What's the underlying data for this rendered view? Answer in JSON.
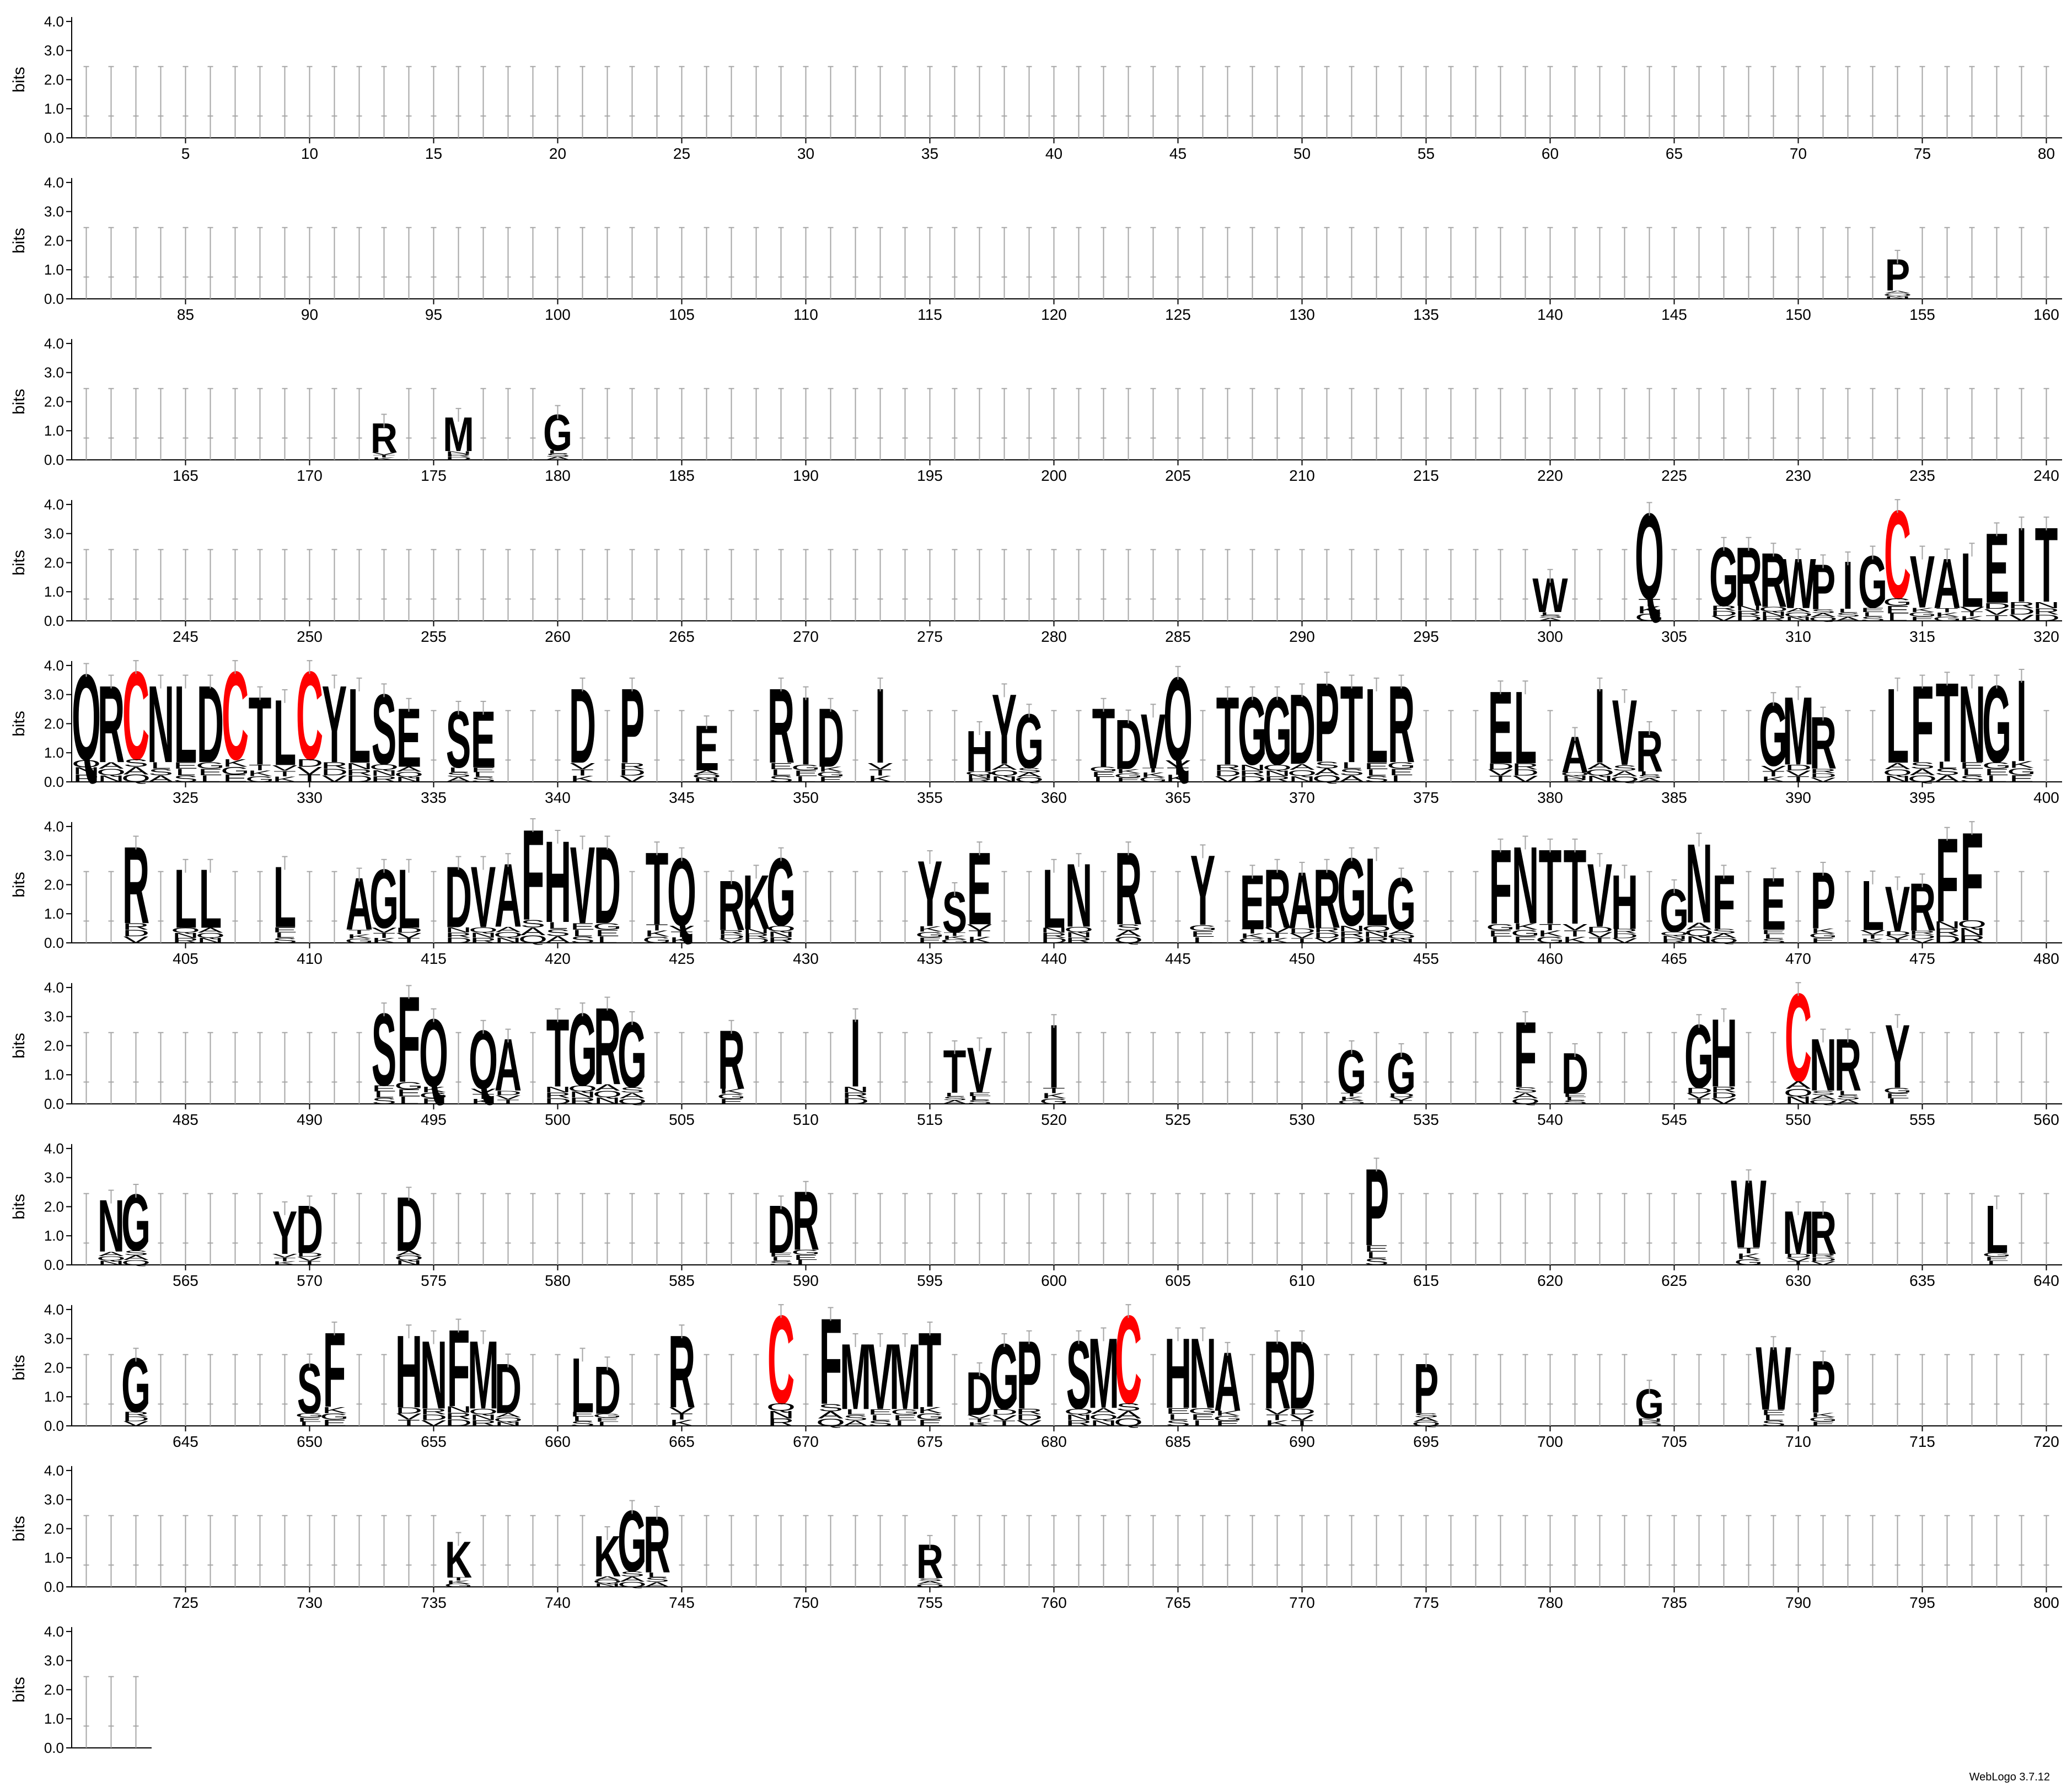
{
  "chart_data": {
    "type": "sequence-logo",
    "ylabel": "bits",
    "ylim": [
      0,
      4.32
    ],
    "yticks": [
      "0.0",
      "1.0",
      "2.0",
      "3.0",
      "4.0"
    ],
    "positions_per_row": 80,
    "total_positions": 803,
    "x_tick_every": 5,
    "error_bars": true,
    "colors": {
      "default": "#000000",
      "cysteine": "#ff0000",
      "axis": "#000000",
      "errorbar": "#a6a6a6"
    },
    "dominant_residues": [
      {
        "pos": 154,
        "residue": "P",
        "bits": 1.4
      },
      {
        "pos": 173,
        "residue": "R",
        "bits": 1.3
      },
      {
        "pos": 176,
        "residue": "M",
        "bits": 1.5
      },
      {
        "pos": 180,
        "residue": "G",
        "bits": 1.6
      },
      {
        "pos": 300,
        "residue": "W",
        "bits": 1.5
      },
      {
        "pos": 304,
        "residue": "Q",
        "bits": 3.8
      },
      {
        "pos": 307,
        "residue": "G",
        "bits": 2.6
      },
      {
        "pos": 308,
        "residue": "R",
        "bits": 2.6
      },
      {
        "pos": 309,
        "residue": "R",
        "bits": 2.4
      },
      {
        "pos": 310,
        "residue": "W",
        "bits": 2.2
      },
      {
        "pos": 311,
        "residue": "P",
        "bits": 2.0
      },
      {
        "pos": 312,
        "residue": "I",
        "bits": 2.1
      },
      {
        "pos": 313,
        "residue": "G",
        "bits": 2.3
      },
      {
        "pos": 314,
        "residue": "C",
        "bits": 3.9
      },
      {
        "pos": 315,
        "residue": "V",
        "bits": 2.3
      },
      {
        "pos": 316,
        "residue": "A",
        "bits": 2.2
      },
      {
        "pos": 317,
        "residue": "L",
        "bits": 2.4
      },
      {
        "pos": 318,
        "residue": "E",
        "bits": 3.1
      },
      {
        "pos": 319,
        "residue": "I",
        "bits": 3.3
      },
      {
        "pos": 320,
        "residue": "T",
        "bits": 3.3
      },
      {
        "pos": 321,
        "residue": "Q",
        "bits": 3.8
      },
      {
        "pos": 322,
        "residue": "R",
        "bits": 3.4
      },
      {
        "pos": 323,
        "residue": "C",
        "bits": 3.9
      },
      {
        "pos": 324,
        "residue": "N",
        "bits": 3.4
      },
      {
        "pos": 325,
        "residue": "L",
        "bits": 3.4
      },
      {
        "pos": 326,
        "residue": "D",
        "bits": 3.4
      },
      {
        "pos": 327,
        "residue": "C",
        "bits": 3.9
      },
      {
        "pos": 328,
        "residue": "T",
        "bits": 3.0
      },
      {
        "pos": 329,
        "residue": "L",
        "bits": 2.9
      },
      {
        "pos": 330,
        "residue": "C",
        "bits": 3.9
      },
      {
        "pos": 331,
        "residue": "Y",
        "bits": 3.4
      },
      {
        "pos": 332,
        "residue": "L",
        "bits": 3.3
      },
      {
        "pos": 333,
        "residue": "S",
        "bits": 3.1
      },
      {
        "pos": 334,
        "residue": "E",
        "bits": 2.6
      },
      {
        "pos": 336,
        "residue": "S",
        "bits": 2.5
      },
      {
        "pos": 337,
        "residue": "E",
        "bits": 2.5
      },
      {
        "pos": 341,
        "residue": "D",
        "bits": 3.3
      },
      {
        "pos": 343,
        "residue": "P",
        "bits": 3.3
      },
      {
        "pos": 346,
        "residue": "E",
        "bits": 2.0
      },
      {
        "pos": 349,
        "residue": "R",
        "bits": 3.3
      },
      {
        "pos": 350,
        "residue": "I",
        "bits": 3.0
      },
      {
        "pos": 351,
        "residue": "D",
        "bits": 2.6
      },
      {
        "pos": 353,
        "residue": "I",
        "bits": 3.3
      },
      {
        "pos": 357,
        "residue": "H",
        "bits": 1.8
      },
      {
        "pos": 358,
        "residue": "Y",
        "bits": 3.1
      },
      {
        "pos": 359,
        "residue": "G",
        "bits": 2.4
      },
      {
        "pos": 362,
        "residue": "T",
        "bits": 2.6
      },
      {
        "pos": 363,
        "residue": "D",
        "bits": 2.2
      },
      {
        "pos": 364,
        "residue": "V",
        "bits": 2.4
      },
      {
        "pos": 365,
        "residue": "Q",
        "bits": 3.7
      },
      {
        "pos": 367,
        "residue": "T",
        "bits": 3.0
      },
      {
        "pos": 368,
        "residue": "G",
        "bits": 3.0
      },
      {
        "pos": 369,
        "residue": "G",
        "bits": 3.0
      },
      {
        "pos": 370,
        "residue": "D",
        "bits": 3.1
      },
      {
        "pos": 371,
        "residue": "P",
        "bits": 3.5
      },
      {
        "pos": 372,
        "residue": "T",
        "bits": 3.4
      },
      {
        "pos": 373,
        "residue": "L",
        "bits": 3.3
      },
      {
        "pos": 374,
        "residue": "R",
        "bits": 3.4
      },
      {
        "pos": 378,
        "residue": "E",
        "bits": 3.2
      },
      {
        "pos": 379,
        "residue": "L",
        "bits": 3.2
      },
      {
        "pos": 381,
        "residue": "A",
        "bits": 1.6
      },
      {
        "pos": 382,
        "residue": "I",
        "bits": 3.3
      },
      {
        "pos": 383,
        "residue": "V",
        "bits": 2.9
      },
      {
        "pos": 384,
        "residue": "R",
        "bits": 1.8
      },
      {
        "pos": 389,
        "residue": "G",
        "bits": 2.8
      },
      {
        "pos": 390,
        "residue": "M",
        "bits": 3.0
      },
      {
        "pos": 391,
        "residue": "R",
        "bits": 2.3
      },
      {
        "pos": 394,
        "residue": "L",
        "bits": 3.3
      },
      {
        "pos": 395,
        "residue": "F",
        "bits": 3.4
      },
      {
        "pos": 396,
        "residue": "T",
        "bits": 3.5
      },
      {
        "pos": 397,
        "residue": "N",
        "bits": 3.4
      },
      {
        "pos": 398,
        "residue": "G",
        "bits": 3.4
      },
      {
        "pos": 399,
        "residue": "I",
        "bits": 3.6
      },
      {
        "pos": 403,
        "residue": "R",
        "bits": 3.4
      },
      {
        "pos": 405,
        "residue": "L",
        "bits": 2.6
      },
      {
        "pos": 406,
        "residue": "L",
        "bits": 2.6
      },
      {
        "pos": 409,
        "residue": "L",
        "bits": 2.7
      },
      {
        "pos": 412,
        "residue": "A",
        "bits": 2.3
      },
      {
        "pos": 413,
        "residue": "G",
        "bits": 2.6
      },
      {
        "pos": 414,
        "residue": "L",
        "bits": 2.6
      },
      {
        "pos": 416,
        "residue": "D",
        "bits": 2.7
      },
      {
        "pos": 417,
        "residue": "V",
        "bits": 2.7
      },
      {
        "pos": 418,
        "residue": "A",
        "bits": 2.8
      },
      {
        "pos": 419,
        "residue": "F",
        "bits": 4.0
      },
      {
        "pos": 420,
        "residue": "H",
        "bits": 3.6
      },
      {
        "pos": 421,
        "residue": "V",
        "bits": 3.4
      },
      {
        "pos": 422,
        "residue": "D",
        "bits": 3.4
      },
      {
        "pos": 424,
        "residue": "T",
        "bits": 3.2
      },
      {
        "pos": 425,
        "residue": "Q",
        "bits": 3.0
      },
      {
        "pos": 427,
        "residue": "R",
        "bits": 2.2
      },
      {
        "pos": 428,
        "residue": "K",
        "bits": 2.4
      },
      {
        "pos": 429,
        "residue": "G",
        "bits": 3.0
      },
      {
        "pos": 435,
        "residue": "Y",
        "bits": 2.9
      },
      {
        "pos": 436,
        "residue": "S",
        "bits": 1.8
      },
      {
        "pos": 437,
        "residue": "E",
        "bits": 3.2
      },
      {
        "pos": 440,
        "residue": "L",
        "bits": 2.6
      },
      {
        "pos": 441,
        "residue": "N",
        "bits": 2.8
      },
      {
        "pos": 443,
        "residue": "R",
        "bits": 3.2
      },
      {
        "pos": 446,
        "residue": "Y",
        "bits": 3.1
      },
      {
        "pos": 448,
        "residue": "E",
        "bits": 2.4
      },
      {
        "pos": 449,
        "residue": "R",
        "bits": 2.6
      },
      {
        "pos": 450,
        "residue": "A",
        "bits": 2.5
      },
      {
        "pos": 451,
        "residue": "R",
        "bits": 2.6
      },
      {
        "pos": 452,
        "residue": "G",
        "bits": 3.0
      },
      {
        "pos": 453,
        "residue": "L",
        "bits": 3.0
      },
      {
        "pos": 454,
        "residue": "G",
        "bits": 2.3
      },
      {
        "pos": 458,
        "residue": "F",
        "bits": 3.3
      },
      {
        "pos": 459,
        "residue": "N",
        "bits": 3.4
      },
      {
        "pos": 460,
        "residue": "T",
        "bits": 3.3
      },
      {
        "pos": 461,
        "residue": "T",
        "bits": 3.3
      },
      {
        "pos": 462,
        "residue": "V",
        "bits": 2.8
      },
      {
        "pos": 463,
        "residue": "H",
        "bits": 2.4
      },
      {
        "pos": 465,
        "residue": "G",
        "bits": 1.9
      },
      {
        "pos": 466,
        "residue": "N",
        "bits": 3.5
      },
      {
        "pos": 467,
        "residue": "F",
        "bits": 2.4
      },
      {
        "pos": 469,
        "residue": "E",
        "bits": 2.3
      },
      {
        "pos": 471,
        "residue": "P",
        "bits": 2.5
      },
      {
        "pos": 473,
        "residue": "L",
        "bits": 2.2
      },
      {
        "pos": 474,
        "residue": "V",
        "bits": 2.0
      },
      {
        "pos": 475,
        "residue": "R",
        "bits": 2.1
      },
      {
        "pos": 476,
        "residue": "F",
        "bits": 3.7
      },
      {
        "pos": 477,
        "residue": "F",
        "bits": 3.9
      },
      {
        "pos": 493,
        "residue": "S",
        "bits": 3.2
      },
      {
        "pos": 494,
        "residue": "F",
        "bits": 3.8
      },
      {
        "pos": 495,
        "residue": "Q",
        "bits": 3.0
      },
      {
        "pos": 497,
        "residue": "Q",
        "bits": 2.6
      },
      {
        "pos": 498,
        "residue": "A",
        "bits": 2.3
      },
      {
        "pos": 500,
        "residue": "T",
        "bits": 3.0
      },
      {
        "pos": 501,
        "residue": "G",
        "bits": 3.2
      },
      {
        "pos": 502,
        "residue": "R",
        "bits": 3.4
      },
      {
        "pos": 503,
        "residue": "G",
        "bits": 2.9
      },
      {
        "pos": 507,
        "residue": "R",
        "bits": 2.6
      },
      {
        "pos": 512,
        "residue": "I",
        "bits": 3.0
      },
      {
        "pos": 516,
        "residue": "T",
        "bits": 1.9
      },
      {
        "pos": 517,
        "residue": "V",
        "bits": 2.0
      },
      {
        "pos": 520,
        "residue": "I",
        "bits": 2.8
      },
      {
        "pos": 532,
        "residue": "G",
        "bits": 1.9
      },
      {
        "pos": 534,
        "residue": "G",
        "bits": 1.8
      },
      {
        "pos": 539,
        "residue": "F",
        "bits": 2.9
      },
      {
        "pos": 541,
        "residue": "D",
        "bits": 1.8
      },
      {
        "pos": 546,
        "residue": "G",
        "bits": 2.8
      },
      {
        "pos": 547,
        "residue": "H",
        "bits": 3.0
      },
      {
        "pos": 550,
        "residue": "C",
        "bits": 3.9
      },
      {
        "pos": 551,
        "residue": "N",
        "bits": 2.3
      },
      {
        "pos": 552,
        "residue": "R",
        "bits": 2.3
      },
      {
        "pos": 554,
        "residue": "Y",
        "bits": 2.8
      },
      {
        "pos": 562,
        "residue": "N",
        "bits": 2.3
      },
      {
        "pos": 563,
        "residue": "G",
        "bits": 2.5
      },
      {
        "pos": 569,
        "residue": "Y",
        "bits": 1.9
      },
      {
        "pos": 570,
        "residue": "D",
        "bits": 2.1
      },
      {
        "pos": 574,
        "residue": "D",
        "bits": 2.4
      },
      {
        "pos": 589,
        "residue": "D",
        "bits": 2.1
      },
      {
        "pos": 590,
        "residue": "R",
        "bits": 2.6
      },
      {
        "pos": 613,
        "residue": "P",
        "bits": 3.4
      },
      {
        "pos": 628,
        "residue": "W",
        "bits": 3.0
      },
      {
        "pos": 630,
        "residue": "M",
        "bits": 1.9
      },
      {
        "pos": 631,
        "residue": "R",
        "bits": 1.9
      },
      {
        "pos": 638,
        "residue": "L",
        "bits": 2.1
      },
      {
        "pos": 643,
        "residue": "G",
        "bits": 2.4
      },
      {
        "pos": 650,
        "residue": "S",
        "bits": 2.2
      },
      {
        "pos": 651,
        "residue": "F",
        "bits": 3.3
      },
      {
        "pos": 654,
        "residue": "H",
        "bits": 3.2
      },
      {
        "pos": 655,
        "residue": "N",
        "bits": 3.0
      },
      {
        "pos": 656,
        "residue": "F",
        "bits": 3.4
      },
      {
        "pos": 657,
        "residue": "M",
        "bits": 3.0
      },
      {
        "pos": 658,
        "residue": "D",
        "bits": 2.2
      },
      {
        "pos": 661,
        "residue": "L",
        "bits": 2.4
      },
      {
        "pos": 662,
        "residue": "D",
        "bits": 2.1
      },
      {
        "pos": 665,
        "residue": "R",
        "bits": 3.2
      },
      {
        "pos": 669,
        "residue": "C",
        "bits": 3.9
      },
      {
        "pos": 671,
        "residue": "F",
        "bits": 3.8
      },
      {
        "pos": 672,
        "residue": "M",
        "bits": 2.9
      },
      {
        "pos": 673,
        "residue": "V",
        "bits": 2.9
      },
      {
        "pos": 674,
        "residue": "M",
        "bits": 2.9
      },
      {
        "pos": 675,
        "residue": "T",
        "bits": 3.3
      },
      {
        "pos": 677,
        "residue": "D",
        "bits": 1.9
      },
      {
        "pos": 678,
        "residue": "G",
        "bits": 2.9
      },
      {
        "pos": 679,
        "residue": "P",
        "bits": 3.0
      },
      {
        "pos": 681,
        "residue": "S",
        "bits": 3.0
      },
      {
        "pos": 682,
        "residue": "M",
        "bits": 3.1
      },
      {
        "pos": 683,
        "residue": "C",
        "bits": 3.9
      },
      {
        "pos": 685,
        "residue": "H",
        "bits": 3.1
      },
      {
        "pos": 686,
        "residue": "N",
        "bits": 3.1
      },
      {
        "pos": 687,
        "residue": "A",
        "bits": 2.6
      },
      {
        "pos": 689,
        "residue": "R",
        "bits": 3.0
      },
      {
        "pos": 690,
        "residue": "D",
        "bits": 3.0
      },
      {
        "pos": 695,
        "residue": "P",
        "bits": 2.2
      },
      {
        "pos": 704,
        "residue": "G",
        "bits": 1.3
      },
      {
        "pos": 709,
        "residue": "W",
        "bits": 2.8
      },
      {
        "pos": 711,
        "residue": "P",
        "bits": 2.3
      },
      {
        "pos": 736,
        "residue": "K",
        "bits": 1.6
      },
      {
        "pos": 742,
        "residue": "K",
        "bits": 1.8
      },
      {
        "pos": 743,
        "residue": "G",
        "bits": 2.7
      },
      {
        "pos": 744,
        "residue": "R",
        "bits": 2.5
      },
      {
        "pos": 755,
        "residue": "R",
        "bits": 1.5
      }
    ]
  },
  "footer": {
    "version": "WebLogo 3.7.12"
  }
}
